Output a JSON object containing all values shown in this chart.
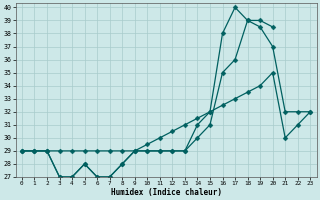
{
  "xlabel": "Humidex (Indice chaleur)",
  "xlim": [
    -0.5,
    23.5
  ],
  "ylim": [
    27,
    40.3
  ],
  "yticks": [
    27,
    28,
    29,
    30,
    31,
    32,
    33,
    34,
    35,
    36,
    37,
    38,
    39,
    40
  ],
  "xticks": [
    0,
    1,
    2,
    3,
    4,
    5,
    6,
    7,
    8,
    9,
    10,
    11,
    12,
    13,
    14,
    15,
    16,
    17,
    18,
    19,
    20,
    21,
    22,
    23
  ],
  "bg_color": "#cde8e8",
  "grid_color": "#a8cccc",
  "line_color": "#006060",
  "line1_x": [
    0,
    1,
    2,
    3,
    4,
    5,
    6,
    7,
    8,
    9,
    10,
    11,
    12,
    13,
    14,
    15,
    16,
    17,
    18,
    19,
    20
  ],
  "line1_y": [
    29,
    29,
    29,
    27,
    27,
    28,
    27,
    27,
    28,
    29,
    29,
    29,
    29,
    29,
    31,
    32,
    38,
    40,
    39,
    39,
    38.5
  ],
  "line2_x": [
    0,
    1,
    2,
    3,
    4,
    5,
    6,
    7,
    8,
    9,
    10,
    11,
    12,
    13,
    14,
    15,
    16,
    17,
    18,
    19,
    20,
    21,
    22,
    23
  ],
  "line2_y": [
    29,
    29,
    29,
    27,
    27,
    28,
    27,
    27,
    28,
    29,
    29,
    29,
    29,
    29,
    30,
    31,
    35,
    36,
    39,
    38.5,
    37,
    32,
    32,
    32
  ],
  "line3_x": [
    0,
    1,
    2,
    3,
    4,
    5,
    6,
    7,
    8,
    9,
    10,
    11,
    12,
    13,
    14,
    15,
    16,
    17,
    18,
    19,
    20,
    21,
    22,
    23
  ],
  "line3_y": [
    29,
    29,
    29,
    29,
    29,
    29,
    29,
    29,
    29,
    29,
    29.5,
    30,
    30.5,
    31,
    31.5,
    32,
    32.5,
    33,
    33.5,
    34,
    35,
    30,
    31,
    32
  ],
  "markersize": 2.5,
  "linewidth": 0.9
}
